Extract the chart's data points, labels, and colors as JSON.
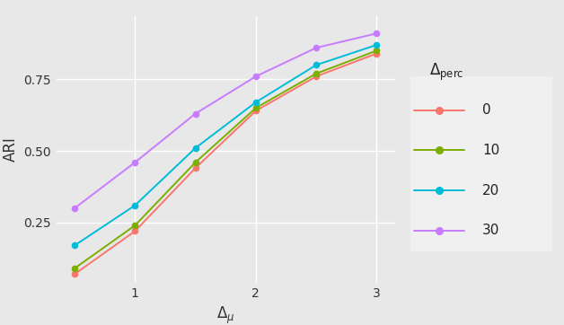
{
  "x": [
    0.5,
    1.0,
    1.5,
    2.0,
    2.5,
    3.0
  ],
  "series": {
    "0": [
      0.07,
      0.22,
      0.44,
      0.64,
      0.76,
      0.84
    ],
    "10": [
      0.09,
      0.24,
      0.46,
      0.65,
      0.77,
      0.85
    ],
    "20": [
      0.17,
      0.31,
      0.51,
      0.67,
      0.8,
      0.87
    ],
    "30": [
      0.3,
      0.46,
      0.63,
      0.76,
      0.86,
      0.91
    ]
  },
  "colors": {
    "0": "#F8766D",
    "10": "#7CAE00",
    "20": "#00BCD8",
    "30": "#C77CFF"
  },
  "legend_labels": [
    "0",
    "10",
    "20",
    "30"
  ],
  "xlabel": "Δ_μ",
  "ylabel": "ARI",
  "xlim": [
    0.35,
    3.15
  ],
  "ylim": [
    0.04,
    0.97
  ],
  "xticks": [
    1,
    2,
    3
  ],
  "yticks": [
    0.25,
    0.5,
    0.75
  ],
  "ytick_labels": [
    "0.25",
    "0.50",
    "0.75"
  ],
  "background_color": "#E8E8E8",
  "panel_background": "#E8E8E8",
  "legend_background": "#F0F0F0",
  "grid_color": "#FFFFFF",
  "marker": "o",
  "markersize": 4.5,
  "linewidth": 1.4,
  "axis_fontsize": 11,
  "legend_fontsize": 10,
  "tick_fontsize": 10
}
